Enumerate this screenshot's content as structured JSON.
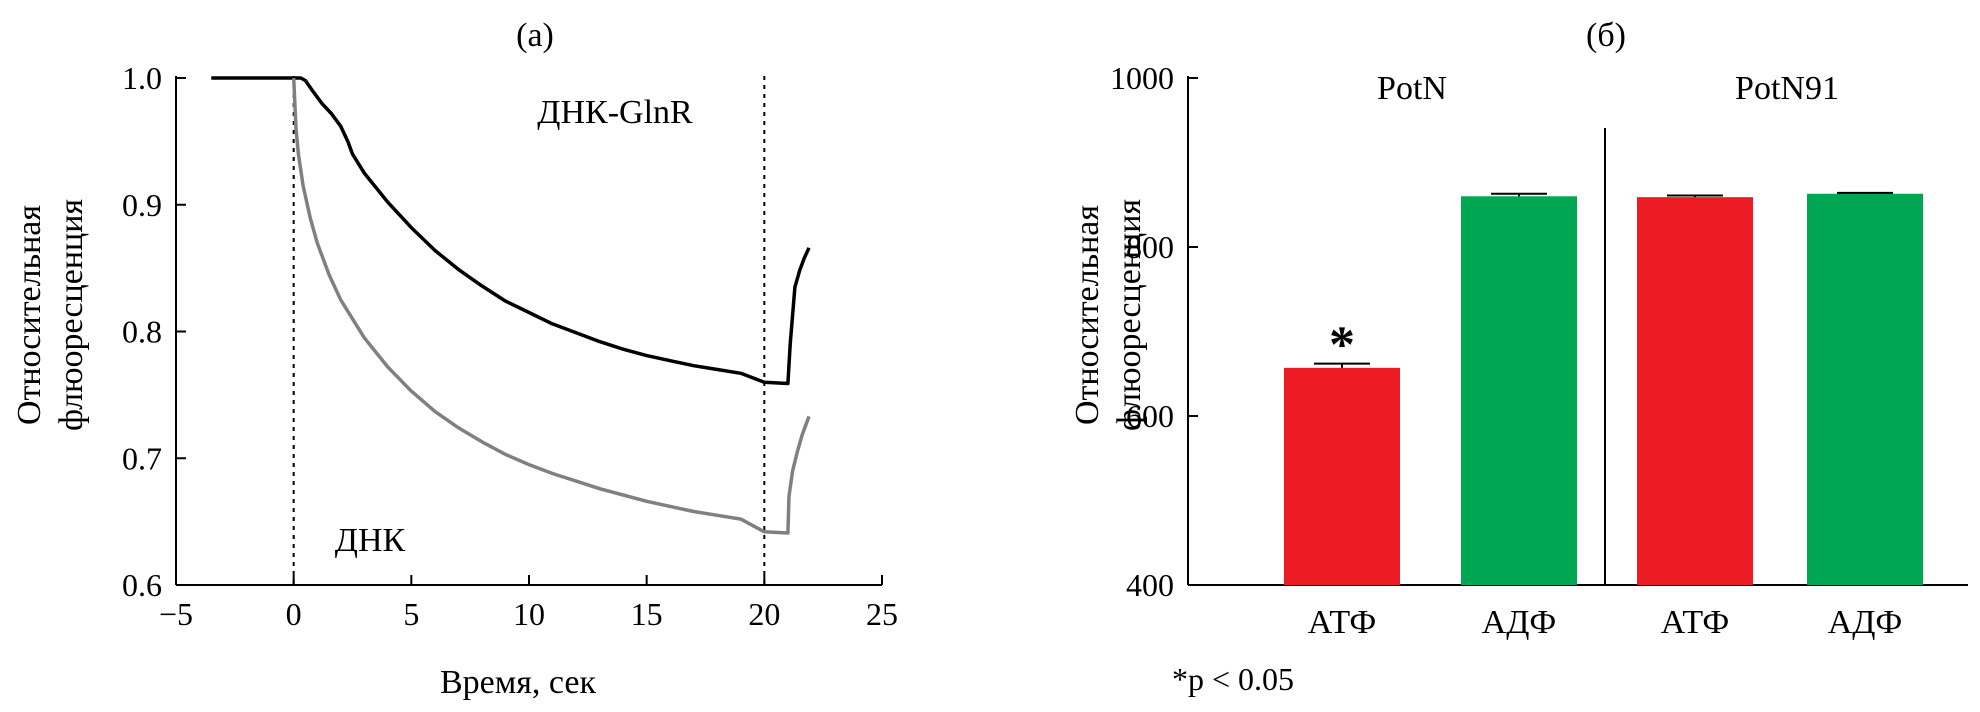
{
  "chart_data": [
    {
      "type": "line",
      "panel_label": "(а)",
      "xlabel": "Время, сек",
      "ylabel": [
        "Относительная",
        "флюоресценция"
      ],
      "xlim": [
        -5,
        25
      ],
      "ylim": [
        0.6,
        1.0
      ],
      "xticks": [
        "−5",
        "0",
        "5",
        "10",
        "15",
        "20",
        "25"
      ],
      "yticks": [
        "0.6",
        "0.7",
        "0.8",
        "0.9",
        "1.0"
      ],
      "vlines": [
        0,
        20
      ],
      "series": [
        {
          "name": "ДНК-GlnR",
          "color": "#000000",
          "x": [
            -3.5,
            0.3,
            0.5,
            0.8,
            1.2,
            1.6,
            2.0,
            2.3,
            2.5,
            3.0,
            4.0,
            5.0,
            6.0,
            7.0,
            8.0,
            9.0,
            10.0,
            11.0,
            12.0,
            13.0,
            14.0,
            15.0,
            16.0,
            17.0,
            18.0,
            19.0,
            20.0,
            21.0,
            21.1,
            21.3,
            21.5,
            21.7,
            21.9
          ],
          "y": [
            1.0,
            1.0,
            0.998,
            0.99,
            0.98,
            0.972,
            0.962,
            0.95,
            0.94,
            0.925,
            0.902,
            0.882,
            0.864,
            0.849,
            0.836,
            0.824,
            0.815,
            0.806,
            0.799,
            0.792,
            0.786,
            0.781,
            0.777,
            0.773,
            0.77,
            0.767,
            0.76,
            0.759,
            0.79,
            0.835,
            0.848,
            0.858,
            0.866
          ]
        },
        {
          "name": "ДНК",
          "color": "#808080",
          "x": [
            0.0,
            0.1,
            0.2,
            0.4,
            0.7,
            1.0,
            1.5,
            2.0,
            3.0,
            4.0,
            5.0,
            6.0,
            7.0,
            8.0,
            9.0,
            10.0,
            11.0,
            12.0,
            13.0,
            14.0,
            15.0,
            16.0,
            17.0,
            18.0,
            19.0,
            20.0,
            21.0,
            21.05,
            21.2,
            21.4,
            21.6,
            21.9
          ],
          "y": [
            1.0,
            0.96,
            0.94,
            0.915,
            0.89,
            0.87,
            0.845,
            0.825,
            0.795,
            0.772,
            0.753,
            0.737,
            0.724,
            0.713,
            0.703,
            0.695,
            0.688,
            0.682,
            0.676,
            0.671,
            0.666,
            0.662,
            0.658,
            0.655,
            0.652,
            0.642,
            0.641,
            0.67,
            0.69,
            0.705,
            0.718,
            0.733
          ]
        }
      ],
      "annotations": [
        "ДНК-GlnR",
        "ДНК"
      ]
    },
    {
      "type": "bar",
      "panel_label": "(б)",
      "ylabel": [
        "Относительная",
        "флюоресценция"
      ],
      "ylim": [
        400,
        1000
      ],
      "yticks": [
        "400",
        "600",
        "800",
        "1000"
      ],
      "groups": [
        "PotN",
        "PotN91"
      ],
      "categories": [
        "АТФ",
        "АДФ",
        "АТФ",
        "АДФ"
      ],
      "values": [
        657,
        860,
        859,
        863
      ],
      "errors": [
        5,
        3,
        2,
        1
      ],
      "colors": [
        "#ed1c24",
        "#00a651",
        "#ed1c24",
        "#00a651"
      ],
      "significance": [
        "*",
        "",
        "",
        ""
      ],
      "footnote": "*p < 0.05"
    }
  ]
}
